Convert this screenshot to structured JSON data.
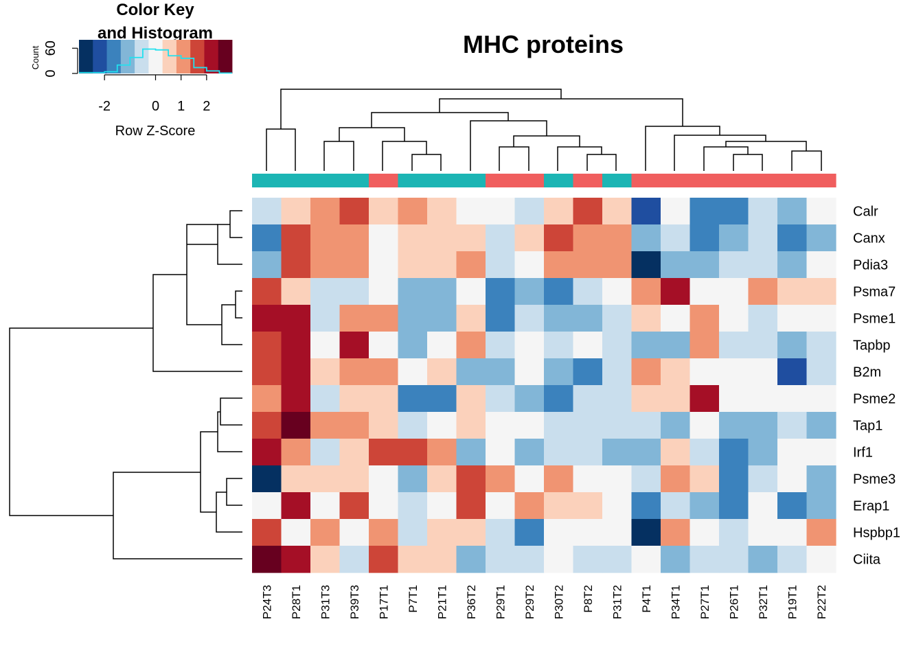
{
  "chart_data": {
    "type": "heatmap",
    "title": "MHC proteins",
    "columns": [
      "P24T3",
      "P28T1",
      "P31T3",
      "P39T3",
      "P17T1",
      "P7T1",
      "P21T1",
      "P36T2",
      "P29T1",
      "P29T2",
      "P30T2",
      "P8T2",
      "P31T2",
      "P4T1",
      "P34T1",
      "P27T1",
      "P26T1",
      "P32T1",
      "P19T1",
      "P22T2"
    ],
    "rows": [
      "Calr",
      "Canx",
      "Pdia3",
      "Psma7",
      "Psme1",
      "Tapbp",
      "B2m",
      "Psme2",
      "Tap1",
      "Irf1",
      "Psme3",
      "Erap1",
      "Hspbp1",
      "Ciita"
    ],
    "zscores": [
      [
        -0.5,
        0.5,
        1,
        1.5,
        0.5,
        1,
        0.5,
        0,
        0,
        -0.5,
        0.5,
        1.5,
        0.5,
        -2,
        0,
        -1.5,
        -1.5,
        -0.5,
        -1,
        0
      ],
      [
        -1.5,
        1.5,
        1,
        1,
        0,
        0.5,
        0.5,
        0.5,
        -0.5,
        0.5,
        1.5,
        1,
        1,
        -1,
        -0.5,
        -1.5,
        -1,
        -0.5,
        -1.5,
        -1
      ],
      [
        -1,
        1.5,
        1,
        1,
        0,
        0.5,
        0.5,
        1,
        -0.5,
        0,
        1,
        1,
        1,
        -3,
        -1,
        -1,
        -0.5,
        -0.5,
        -1,
        0
      ],
      [
        1.5,
        0.5,
        -0.5,
        -0.5,
        0,
        -1,
        -1,
        0,
        -1.5,
        -1,
        -1.5,
        -0.5,
        0,
        1,
        2,
        0,
        0,
        1,
        0.5,
        0.5
      ],
      [
        2,
        2,
        -0.5,
        1,
        1,
        -1,
        -1,
        0.5,
        -1.5,
        -0.5,
        -1,
        -1,
        -0.5,
        0.5,
        0,
        1,
        0,
        -0.5,
        0,
        0
      ],
      [
        1.5,
        2,
        0,
        2,
        0,
        -1,
        0,
        1,
        -0.5,
        0,
        -0.5,
        0,
        -0.5,
        -1,
        -1,
        1,
        -0.5,
        -0.5,
        -1,
        -0.5
      ],
      [
        1.5,
        2,
        0.5,
        1,
        1,
        0,
        0.5,
        -1,
        -1,
        0,
        -1,
        -1.5,
        -0.5,
        1,
        0.5,
        0,
        0,
        0,
        -2,
        -0.5
      ],
      [
        1,
        2,
        -0.5,
        0.5,
        0.5,
        -1.5,
        -1.5,
        0.5,
        -0.5,
        -1,
        -1.5,
        -0.5,
        -0.5,
        0.5,
        0.5,
        2,
        0,
        0,
        0,
        0
      ],
      [
        1.5,
        2.5,
        1,
        1,
        0.5,
        -0.5,
        0,
        0.5,
        0,
        0,
        -0.5,
        -0.5,
        -0.5,
        -0.5,
        -1,
        0,
        -1,
        -1,
        -0.5,
        -1
      ],
      [
        2,
        1,
        -0.5,
        0.5,
        1.5,
        1.5,
        1,
        -1,
        0,
        -1,
        -0.5,
        -0.5,
        -1,
        -1,
        0.5,
        -0.5,
        -1.5,
        -1,
        0,
        0
      ],
      [
        -3,
        0.5,
        0.5,
        0.5,
        0,
        -1,
        0.5,
        1.5,
        1,
        0,
        1,
        0,
        0,
        -0.5,
        1,
        0.5,
        -1.5,
        -0.5,
        0,
        -1
      ],
      [
        0,
        2,
        0,
        1.5,
        0,
        -0.5,
        0,
        1.5,
        0,
        1,
        0.5,
        0.5,
        0,
        -1.5,
        -0.5,
        -1,
        -1.5,
        0,
        -1.5,
        -1
      ],
      [
        1.5,
        0,
        1,
        0,
        1,
        -0.5,
        0.5,
        0.5,
        -0.5,
        -1.5,
        0,
        0,
        0,
        -3,
        1,
        0,
        -0.5,
        0,
        0,
        1
      ],
      [
        2.5,
        2,
        0.5,
        -0.5,
        1.5,
        0.5,
        0.5,
        -1,
        -0.5,
        -0.5,
        0,
        -0.5,
        -0.5,
        0,
        -1,
        -0.5,
        -0.5,
        -1,
        -0.5,
        0
      ]
    ],
    "column_groups": [
      1,
      1,
      1,
      1,
      2,
      1,
      1,
      1,
      2,
      2,
      1,
      2,
      1,
      2,
      2,
      2,
      2,
      2,
      2,
      2
    ],
    "group_colors": {
      "1": "#1cb5b4",
      "2": "#f05e5e"
    },
    "color_scale": [
      "#053061",
      "#1f4ea0",
      "#3b82bd",
      "#82b6d7",
      "#c9deed",
      "#f5f5f5",
      "#fbd1bb",
      "#f09472",
      "#cd4538",
      "#a50f26",
      "#67001f"
    ],
    "color_range": [
      -3,
      3
    ],
    "color_key": {
      "title": "Color Key\nand Histogram",
      "title_line1": "Color Key",
      "title_line2": "and Histogram",
      "xlabel": "Row Z-Score",
      "ylabel": "Count",
      "xticks": [
        "-2",
        "0",
        "1",
        "2"
      ],
      "xtick_values": [
        -2,
        0,
        1,
        2
      ],
      "yticks": [
        "0",
        "60"
      ],
      "ytick_values": [
        0,
        60
      ],
      "ylim": [
        0,
        80
      ],
      "histogram": [
        2,
        2,
        4,
        20,
        38,
        58,
        56,
        42,
        36,
        14,
        6,
        1
      ]
    }
  }
}
